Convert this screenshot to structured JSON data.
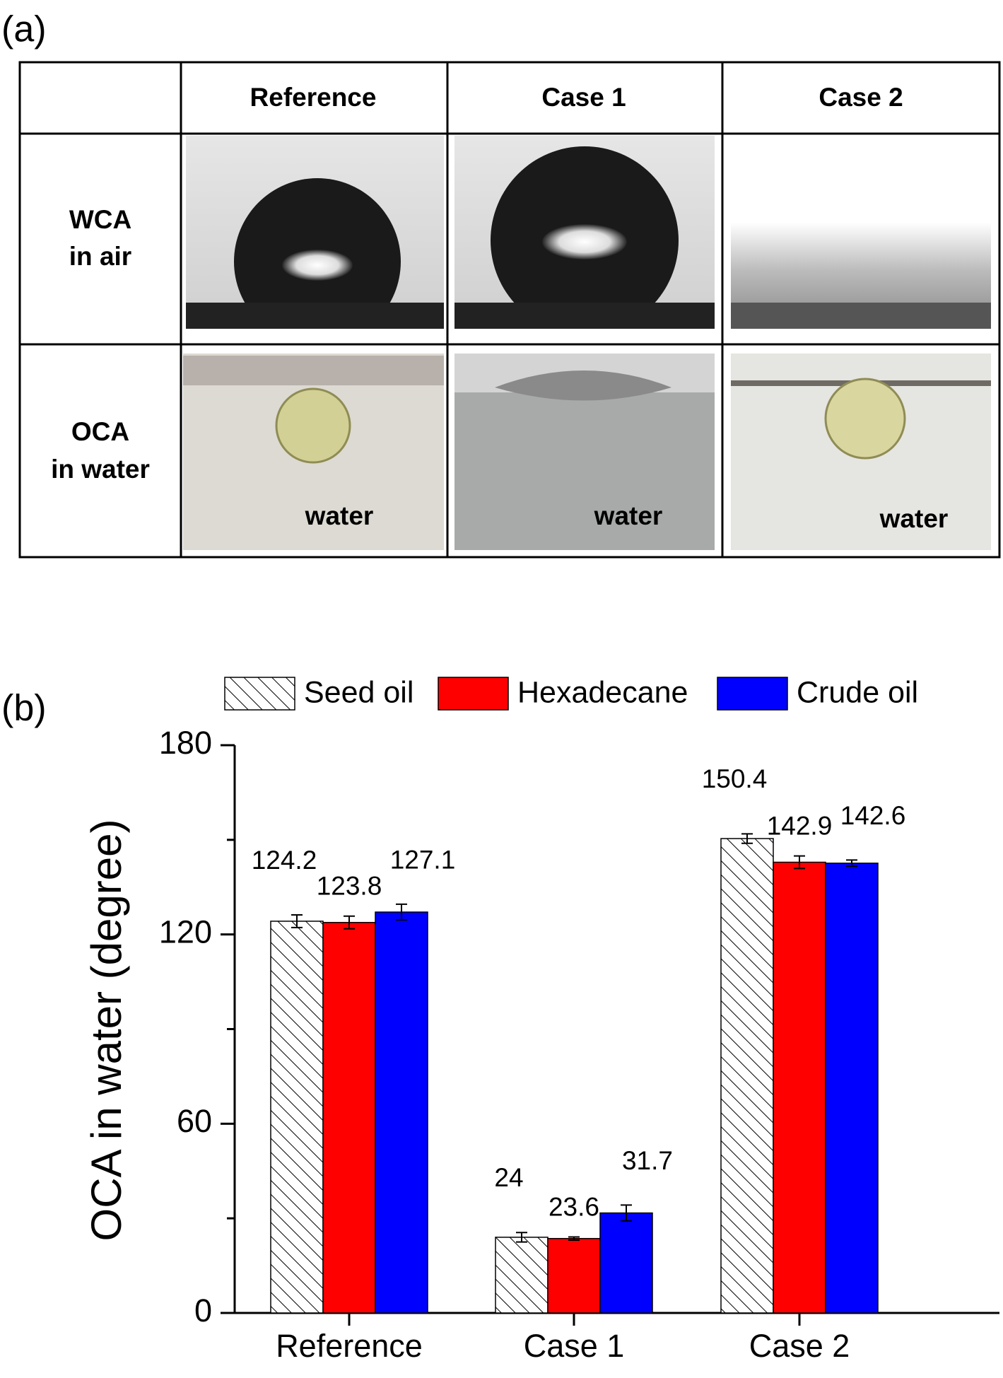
{
  "panel_a_label": "(a)",
  "table": {
    "column_headers": [
      "Reference",
      "Case 1",
      "Case 2"
    ],
    "rows": [
      {
        "label_lines": [
          "WCA",
          "in air"
        ]
      },
      {
        "label_lines": [
          "OCA",
          "in water"
        ]
      }
    ],
    "image_labels": [
      "water",
      "water",
      "water"
    ]
  },
  "panel_b_label": "(b)",
  "chart_data": {
    "type": "bar",
    "y_label": "OCA in water (degree)",
    "categories": [
      "Reference",
      "Case 1",
      "Case 2"
    ],
    "series": [
      {
        "name": "Seed oil",
        "color": "#ffffff",
        "pattern": "hatch",
        "values": [
          124.2,
          24,
          150.4
        ],
        "errors": [
          2,
          1.5,
          1.5
        ]
      },
      {
        "name": "Hexadecane",
        "color": "#ff0000",
        "values": [
          123.8,
          23.6,
          142.9
        ],
        "errors": [
          2,
          0.5,
          2
        ]
      },
      {
        "name": "Crude oil",
        "color": "#0000ff",
        "values": [
          127.1,
          31.7,
          142.6
        ],
        "errors": [
          2.5,
          2.5,
          1
        ]
      }
    ],
    "ylim": [
      0,
      180
    ],
    "yticks": [
      0,
      60,
      120,
      180
    ],
    "minor_yticks": [
      30,
      90,
      150
    ],
    "legend": "top"
  }
}
